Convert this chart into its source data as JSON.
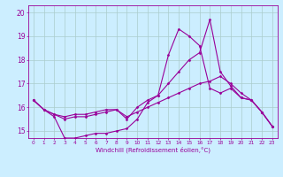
{
  "title": "",
  "xlabel": "Windchill (Refroidissement éolien,°C)",
  "x": [
    0,
    1,
    2,
    3,
    4,
    5,
    6,
    7,
    8,
    9,
    10,
    11,
    12,
    13,
    14,
    15,
    16,
    17,
    18,
    19,
    20,
    21,
    22,
    23
  ],
  "line1": [
    16.3,
    15.9,
    15.6,
    14.7,
    14.7,
    14.8,
    14.9,
    14.9,
    15.0,
    15.1,
    15.5,
    16.2,
    16.5,
    18.2,
    19.3,
    19.0,
    18.6,
    16.8,
    16.6,
    16.8,
    16.4,
    16.3,
    15.8,
    15.2
  ],
  "line2": [
    16.3,
    15.9,
    15.7,
    15.6,
    15.7,
    15.7,
    15.8,
    15.9,
    15.9,
    15.5,
    16.0,
    16.3,
    16.5,
    17.0,
    17.5,
    18.0,
    18.3,
    19.7,
    17.5,
    16.9,
    16.4,
    16.3,
    15.8,
    15.2
  ],
  "line3": [
    16.3,
    15.9,
    15.7,
    15.5,
    15.6,
    15.6,
    15.7,
    15.8,
    15.9,
    15.6,
    15.8,
    16.0,
    16.2,
    16.4,
    16.6,
    16.8,
    17.0,
    17.1,
    17.3,
    17.0,
    16.6,
    16.3,
    15.8,
    15.2
  ],
  "bg_color": "#cceeff",
  "line_color": "#990099",
  "grid_color": "#aacccc",
  "ylim": [
    14.7,
    20.3
  ],
  "yticks": [
    15,
    16,
    17,
    18,
    19,
    20
  ],
  "marker": "D",
  "markersize": 1.5,
  "linewidth": 0.8
}
